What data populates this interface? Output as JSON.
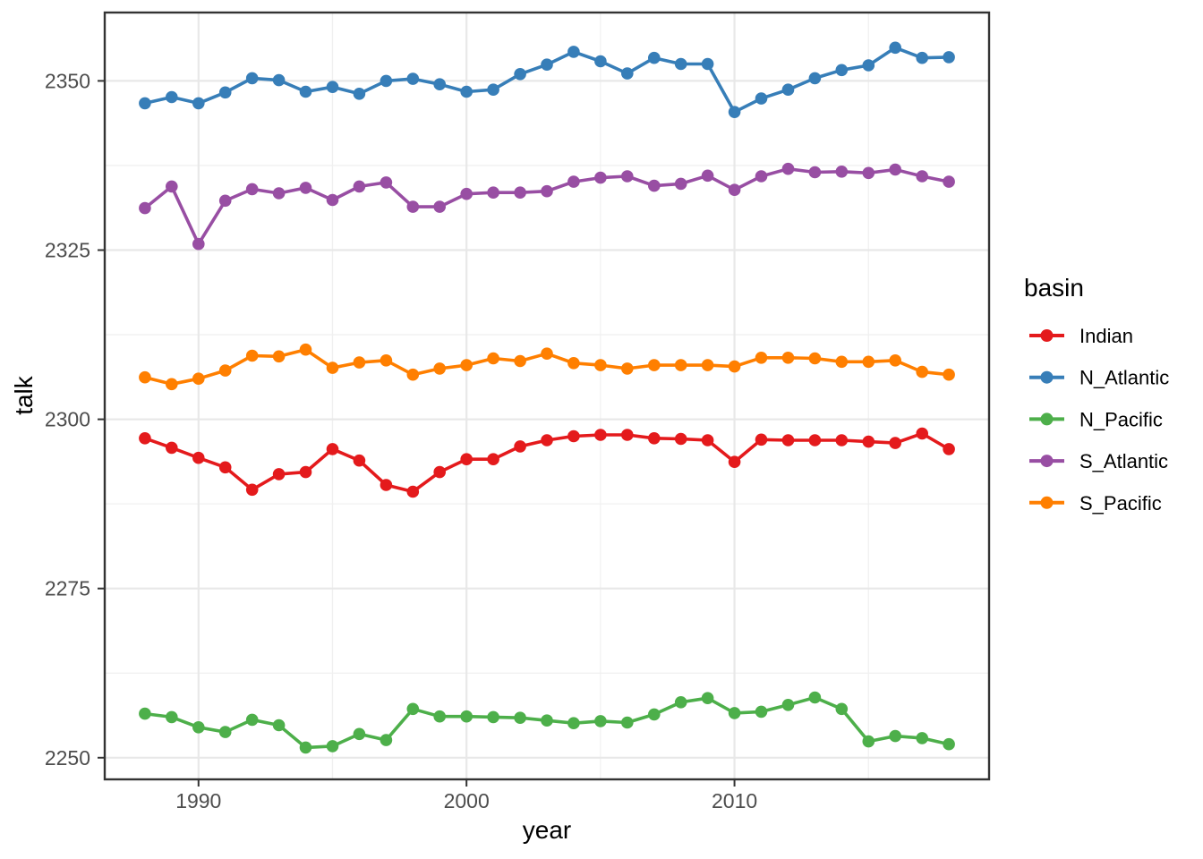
{
  "figure": {
    "background": "#ffffff",
    "panel_background": "#ffffff",
    "panel_border_color": "#333333",
    "grid_major_color": "#e8e8e8",
    "grid_minor_color": "#f0f0f0",
    "tick_mark_color": "#333333",
    "tick_label_color": "#4d4d4d"
  },
  "chart_data": {
    "type": "line",
    "title": "",
    "xlabel": "year",
    "ylabel": "talk",
    "xlim": [
      1986.5,
      2019.5
    ],
    "ylim": [
      2246.8,
      2360.1
    ],
    "grid": true,
    "x_major_ticks": [
      1990,
      2000,
      2010
    ],
    "x_minor_ticks": [
      1995,
      2005,
      2015
    ],
    "y_major_ticks": [
      2250,
      2275,
      2300,
      2325,
      2350
    ],
    "y_minor_ticks": [
      2262.5,
      2287.5,
      2312.5,
      2337.5
    ],
    "x": [
      1988,
      1989,
      1990,
      1991,
      1992,
      1993,
      1994,
      1995,
      1996,
      1997,
      1998,
      1999,
      2000,
      2001,
      2002,
      2003,
      2004,
      2005,
      2006,
      2007,
      2008,
      2009,
      2010,
      2011,
      2012,
      2013,
      2014,
      2015,
      2016,
      2017,
      2018
    ],
    "series": [
      {
        "name": "Indian",
        "color": "#e41a1c",
        "values": [
          2297.2,
          2295.8,
          2294.3,
          2292.9,
          2289.6,
          2291.9,
          2292.2,
          2295.6,
          2293.9,
          2290.3,
          2289.3,
          2292.2,
          2294.1,
          2294.1,
          2296.0,
          2296.9,
          2297.5,
          2297.7,
          2297.7,
          2297.2,
          2297.1,
          2296.9,
          2293.7,
          2297.0,
          2296.9,
          2296.9,
          2296.9,
          2296.7,
          2296.5,
          2297.9,
          2295.6
        ]
      },
      {
        "name": "N_Atlantic",
        "color": "#377eb8",
        "values": [
          2346.7,
          2347.6,
          2346.7,
          2348.3,
          2350.4,
          2350.1,
          2348.4,
          2349.1,
          2348.1,
          2350.0,
          2350.3,
          2349.5,
          2348.4,
          2348.7,
          2351.0,
          2352.4,
          2354.3,
          2352.9,
          2351.1,
          2353.4,
          2352.5,
          2352.5,
          2345.4,
          2347.4,
          2348.7,
          2350.4,
          2351.6,
          2352.3,
          2354.9,
          2353.4,
          2353.5
        ]
      },
      {
        "name": "N_Pacific",
        "color": "#4daf4a",
        "values": [
          2256.5,
          2256.0,
          2254.5,
          2253.8,
          2255.6,
          2254.8,
          2251.5,
          2251.7,
          2253.5,
          2252.6,
          2257.2,
          2256.1,
          2256.1,
          2256.0,
          2255.9,
          2255.5,
          2255.1,
          2255.4,
          2255.2,
          2256.4,
          2258.2,
          2258.8,
          2256.6,
          2256.8,
          2257.8,
          2258.9,
          2257.2,
          2252.4,
          2253.2,
          2252.9,
          2252.0
        ]
      },
      {
        "name": "S_Atlantic",
        "color": "#984ea3",
        "values": [
          2331.2,
          2334.4,
          2325.9,
          2332.3,
          2334.0,
          2333.4,
          2334.2,
          2332.4,
          2334.4,
          2335.0,
          2331.4,
          2331.4,
          2333.3,
          2333.5,
          2333.5,
          2333.7,
          2335.1,
          2335.7,
          2335.9,
          2334.5,
          2334.8,
          2336.0,
          2333.9,
          2335.9,
          2337.0,
          2336.5,
          2336.6,
          2336.4,
          2336.9,
          2335.9,
          2335.1
        ]
      },
      {
        "name": "S_Pacific",
        "color": "#ff7f00",
        "values": [
          2306.2,
          2305.2,
          2306.0,
          2307.2,
          2309.4,
          2309.3,
          2310.3,
          2307.6,
          2308.4,
          2308.7,
          2306.6,
          2307.5,
          2308.0,
          2309.0,
          2308.6,
          2309.7,
          2308.3,
          2308.0,
          2307.5,
          2308.0,
          2308.0,
          2308.0,
          2307.8,
          2309.1,
          2309.1,
          2309.0,
          2308.5,
          2308.5,
          2308.7,
          2307.0,
          2306.6
        ]
      }
    ],
    "legend": {
      "title": "basin",
      "position": "right",
      "entries": [
        "Indian",
        "N_Atlantic",
        "N_Pacific",
        "S_Atlantic",
        "S_Pacific"
      ]
    }
  }
}
